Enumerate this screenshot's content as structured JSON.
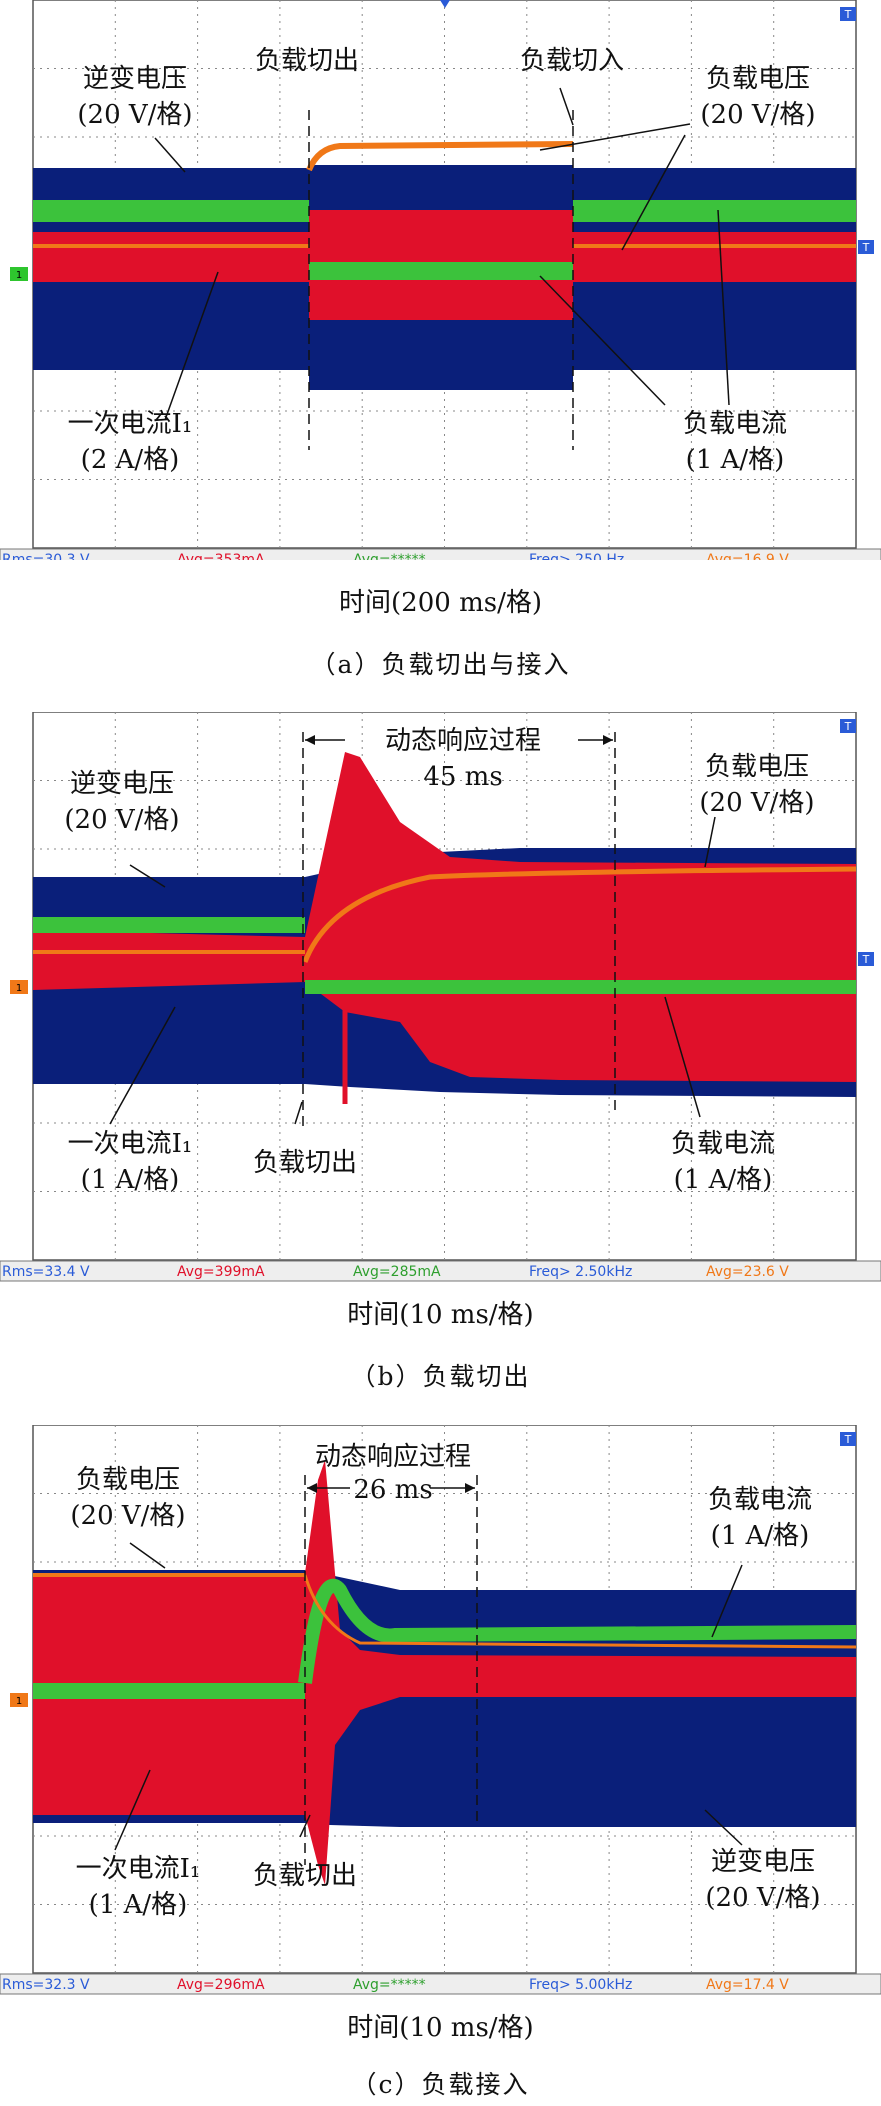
{
  "colors": {
    "inverter_voltage": "#0a1f7a",
    "primary_current": "#e0102a",
    "load_current": "#3cc23c",
    "load_voltage": "#f07818",
    "grid": "#888888",
    "frame": "#555555"
  },
  "marker_labels": {
    "ch1": "1",
    "T": "T"
  },
  "chart_data": [
    {
      "id": "a",
      "type": "line",
      "caption": "（a）负载切出与接入",
      "xlabel": "时间(200 ms/格)",
      "annotations": {
        "load_off": "负载切出",
        "load_on": "负载切入",
        "inv_v": [
          "逆变电压",
          "(20 V/格)"
        ],
        "load_v": [
          "负载电压",
          "(20 V/格)"
        ],
        "prim_i": [
          "一次电流I₁",
          "(2 A/格)"
        ],
        "load_i": [
          "负载电流",
          "(1 A/格)"
        ]
      },
      "measurements": [
        "Rms=30.3 V",
        "Avg=353mA",
        "Avg=*****",
        "Freq> 250 Hz",
        "Avg=16.9 V"
      ]
    },
    {
      "id": "b",
      "type": "line",
      "caption": "（b）负载切出",
      "xlabel": "时间(10 ms/格)",
      "annotations": {
        "dynamic": "动态响应过程",
        "duration": "45 ms",
        "load_off": "负载切出",
        "inv_v": [
          "逆变电压",
          "(20 V/格)"
        ],
        "load_v": [
          "负载电压",
          "(20 V/格)"
        ],
        "prim_i": [
          "一次电流I₁",
          "(1 A/格)"
        ],
        "load_i": [
          "负载电流",
          "(1 A/格)"
        ]
      },
      "measurements": [
        "Rms=33.4 V",
        "Avg=399mA",
        "Avg=285mA",
        "Freq> 2.50kHz",
        "Avg=23.6 V"
      ]
    },
    {
      "id": "c",
      "type": "line",
      "caption": "（c）负载接入",
      "xlabel": "时间(10 ms/格)",
      "annotations": {
        "dynamic": "动态响应过程",
        "duration": "26 ms",
        "load_off": "负载切出",
        "inv_v": [
          "逆变电压",
          "(20 V/格)"
        ],
        "load_v": [
          "负载电压",
          "(20 V/格)"
        ],
        "prim_i": [
          "一次电流I₁",
          "(1 A/格)"
        ],
        "load_i": [
          "负载电流",
          "(1 A/格)"
        ]
      },
      "measurements": [
        "Rms=32.3 V",
        "Avg=296mA",
        "Avg=*****",
        "Freq> 5.00kHz",
        "Avg=17.4 V"
      ]
    }
  ]
}
